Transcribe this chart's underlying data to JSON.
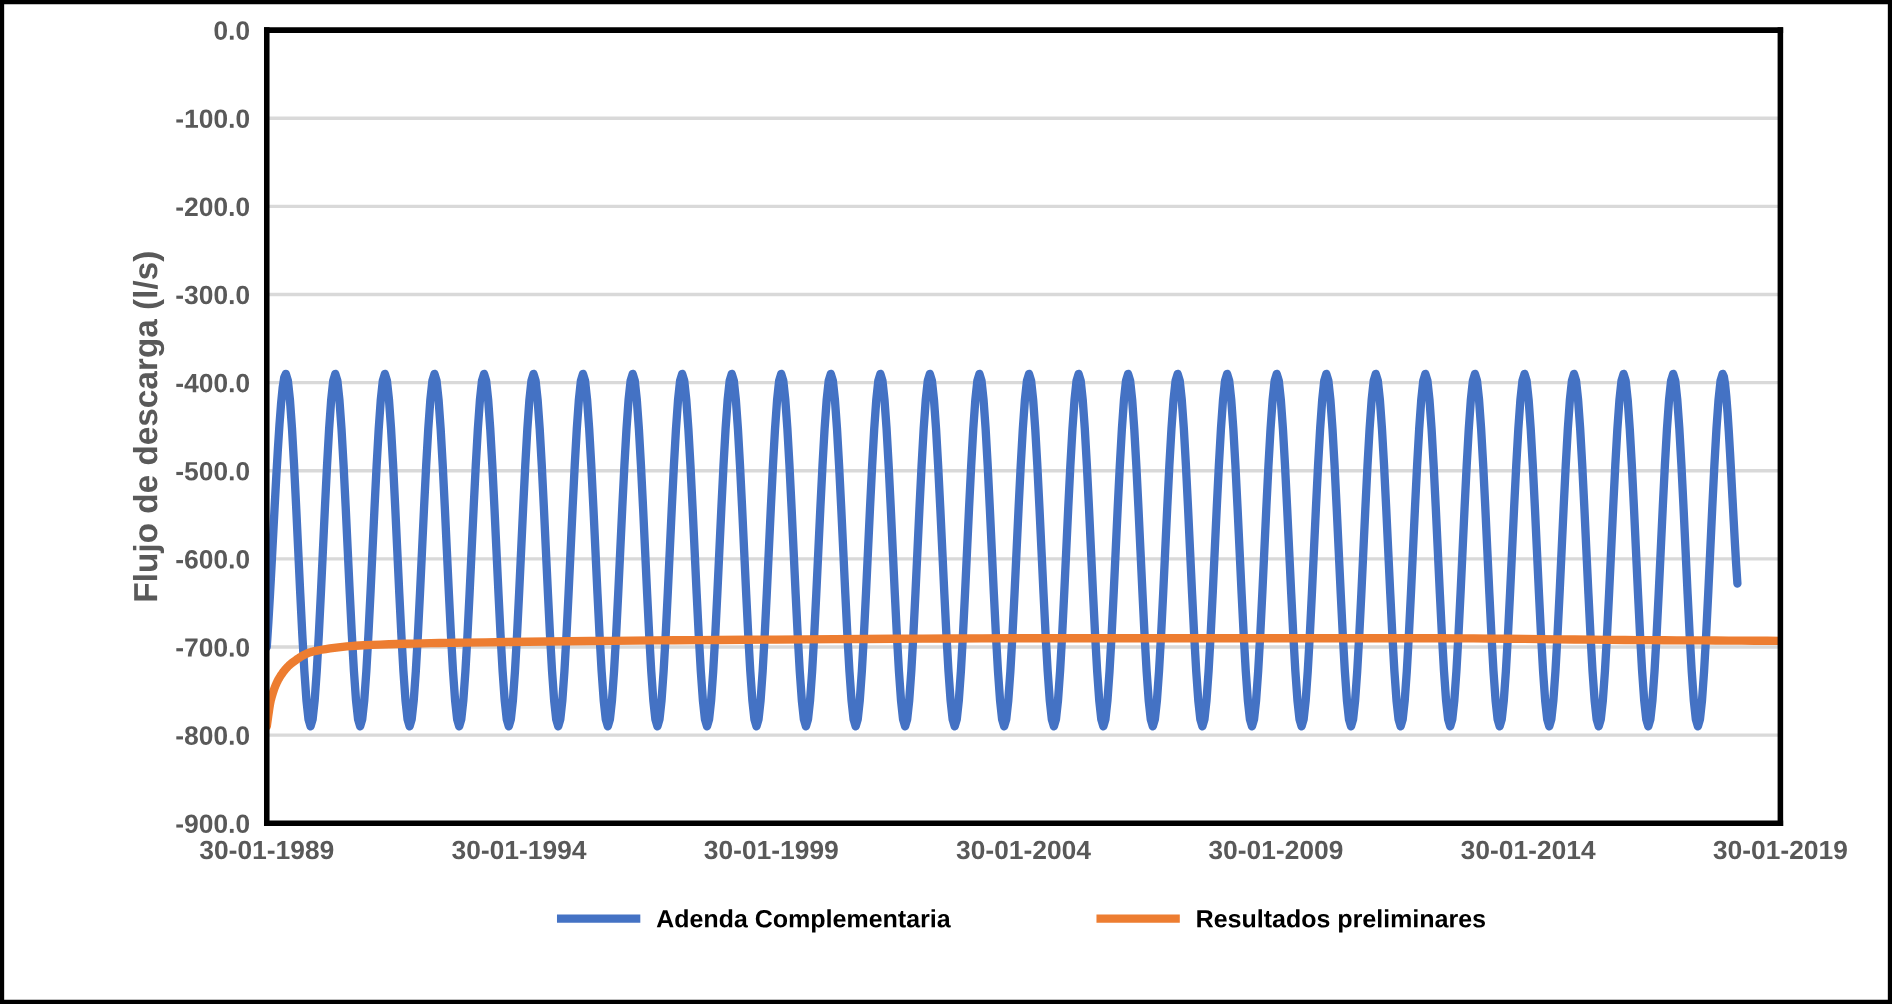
{
  "chart_data": {
    "type": "line",
    "ylabel": "Flujo de descarga (l/s)",
    "ylim": [
      -900,
      0
    ],
    "yticks": [
      {
        "value": 0,
        "label": "0.0"
      },
      {
        "value": -100,
        "label": "-100.0"
      },
      {
        "value": -200,
        "label": "-200.0"
      },
      {
        "value": -300,
        "label": "-300.0"
      },
      {
        "value": -400,
        "label": "-400.0"
      },
      {
        "value": -500,
        "label": "-500.0"
      },
      {
        "value": -600,
        "label": "-600.0"
      },
      {
        "value": -700,
        "label": "-700.0"
      },
      {
        "value": -800,
        "label": "-800.0"
      },
      {
        "value": -900,
        "label": "-900.0"
      }
    ],
    "xlim": [
      "1989-01-30",
      "2019-01-30"
    ],
    "xticks": [
      {
        "value": "1989-01-30",
        "label": "30-01-1989"
      },
      {
        "value": "1994-01-30",
        "label": "30-01-1994"
      },
      {
        "value": "1999-01-30",
        "label": "30-01-1999"
      },
      {
        "value": "2004-01-30",
        "label": "30-01-2004"
      },
      {
        "value": "2009-01-30",
        "label": "30-01-2009"
      },
      {
        "value": "2014-01-30",
        "label": "30-01-2014"
      },
      {
        "value": "2019-01-30",
        "label": "30-01-2019"
      }
    ],
    "grid": "y",
    "legend": "bottom",
    "line_style": "solid",
    "series": [
      {
        "name": "Adenda Complementaria",
        "color": "#4472c4",
        "x": [
          "1989-01-30",
          "1989-06-17",
          "1989-12-13",
          "1990-06-10",
          "1990-12-07",
          "1991-06-04",
          "1991-11-30",
          "1992-05-28",
          "1992-11-23",
          "1993-05-22",
          "1993-11-17",
          "1994-05-15",
          "1994-11-10",
          "1995-05-08",
          "1995-11-04",
          "1996-05-02",
          "1996-10-28",
          "1997-04-25",
          "1997-10-22",
          "1998-04-19",
          "1998-10-15",
          "1999-04-12",
          "1999-10-08",
          "2000-04-05",
          "2000-10-02",
          "2001-03-30",
          "2001-09-25",
          "2002-03-23",
          "2002-09-19",
          "2003-03-17",
          "2003-09-12",
          "2004-03-10",
          "2004-09-06",
          "2005-03-04",
          "2005-08-30",
          "2006-02-25",
          "2006-08-23",
          "2007-02-19",
          "2007-08-17",
          "2008-02-12",
          "2008-08-10",
          "2009-02-05",
          "2009-08-04",
          "2010-01-30",
          "2010-07-28",
          "2011-01-23",
          "2011-07-22",
          "2012-01-17",
          "2012-07-15",
          "2013-01-10",
          "2013-07-08",
          "2014-01-04",
          "2014-07-02",
          "2014-12-28",
          "2015-06-25",
          "2015-12-22",
          "2016-06-18",
          "2016-12-15",
          "2017-06-12",
          "2017-12-08",
          "2018-03-25"
        ],
        "values": [
          -700,
          -390,
          -790,
          -390,
          -790,
          -390,
          -790,
          -390,
          -790,
          -390,
          -790,
          -390,
          -790,
          -390,
          -790,
          -390,
          -790,
          -390,
          -790,
          -390,
          -790,
          -390,
          -790,
          -390,
          -790,
          -390,
          -790,
          -390,
          -790,
          -390,
          -790,
          -390,
          -790,
          -390,
          -790,
          -390,
          -790,
          -390,
          -790,
          -390,
          -790,
          -390,
          -790,
          -390,
          -790,
          -390,
          -790,
          -390,
          -790,
          -390,
          -790,
          -390,
          -790,
          -390,
          -790,
          -390,
          -790,
          -390,
          -790,
          -390,
          -628
        ]
      },
      {
        "name": "Resultados preliminares",
        "color": "#ed7d31",
        "x": [
          "1989-01-30",
          "1989-03-01",
          "1989-05-01",
          "1989-08-01",
          "1990-01-01",
          "1991-01-01",
          "1993-01-01",
          "1998-01-01",
          "2005-01-01",
          "2012-01-01",
          "2016-01-01",
          "2019-01-30"
        ],
        "values": [
          -790,
          -760,
          -735,
          -718,
          -705,
          -698,
          -695,
          -692,
          -690,
          -690,
          -692,
          -693
        ]
      }
    ]
  }
}
